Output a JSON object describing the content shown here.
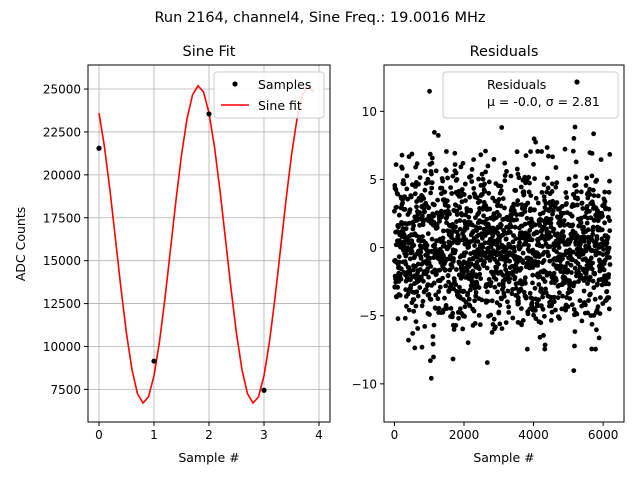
{
  "suptitle": "Run 2164, channel4, Sine Freq.: 19.0016 MHz",
  "chart_data": [
    {
      "type": "line",
      "title": "Sine Fit",
      "xlabel": "Sample #",
      "ylabel": "ADC Counts",
      "xlim": [
        -0.2,
        4.2
      ],
      "ylim": [
        5600,
        26400
      ],
      "xticks": [
        0,
        1,
        2,
        3,
        4
      ],
      "yticks": [
        7500,
        10000,
        12500,
        15000,
        17500,
        20000,
        22500,
        25000
      ],
      "grid": true,
      "legend_position": "top-right",
      "series": [
        {
          "name": "Samples",
          "kind": "scatter",
          "color": "#000000",
          "x": [
            0,
            1,
            2,
            3
          ],
          "y": [
            21550,
            9150,
            23550,
            7450
          ]
        },
        {
          "name": "Sine fit",
          "kind": "line",
          "color": "#ff0000",
          "fit": {
            "amplitude": 9250,
            "offset": 15950,
            "period_samples": 2.0,
            "peak_at": 1.81,
            "x_start": 0,
            "x_end": 3.9,
            "step": 0.1
          }
        }
      ]
    },
    {
      "type": "scatter",
      "title": "Residuals",
      "xlabel": "Sample #",
      "ylabel": "",
      "xlim": [
        -300,
        6600
      ],
      "ylim": [
        -12.8,
        13.4
      ],
      "xticks": [
        0,
        2000,
        4000,
        6000
      ],
      "yticks": [
        -10,
        -5,
        0,
        5,
        10
      ],
      "grid": false,
      "legend_position": "top-right",
      "legend": {
        "label": "Residuals",
        "stats": "μ = -0.0, σ = 2.81"
      },
      "series": [
        {
          "name": "Residuals",
          "color": "#000000",
          "n_points": 6200,
          "mean": -0.0,
          "std": 2.81,
          "high_variance_regions": [
            [
              1000,
              1150
            ],
            [
              5150,
              5250
            ]
          ]
        }
      ]
    }
  ]
}
